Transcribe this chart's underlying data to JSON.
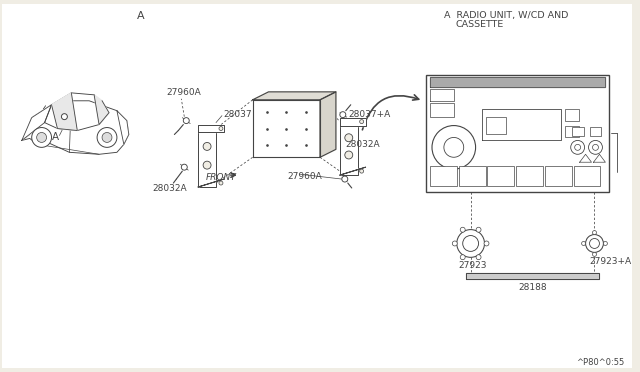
{
  "bg_color": "#f0ede4",
  "line_color": "#444444",
  "labels": {
    "A_top": "A",
    "A_car": "A",
    "radio_title_1": "A  RADIO UNIT, W/CD AND",
    "radio_title_2": "CASSETTE",
    "27960A_top": "27960A",
    "28037": "28037",
    "28032A_left": "28032A",
    "28037_plus_A": "28037+A",
    "28032A_right": "28032A",
    "27960A_bottom": "27960A",
    "27923": "27923",
    "27923_plus_A": "27923+A",
    "28188": "28188",
    "FRONT": "FRONT",
    "diagram_code": "^P80^0:55"
  }
}
